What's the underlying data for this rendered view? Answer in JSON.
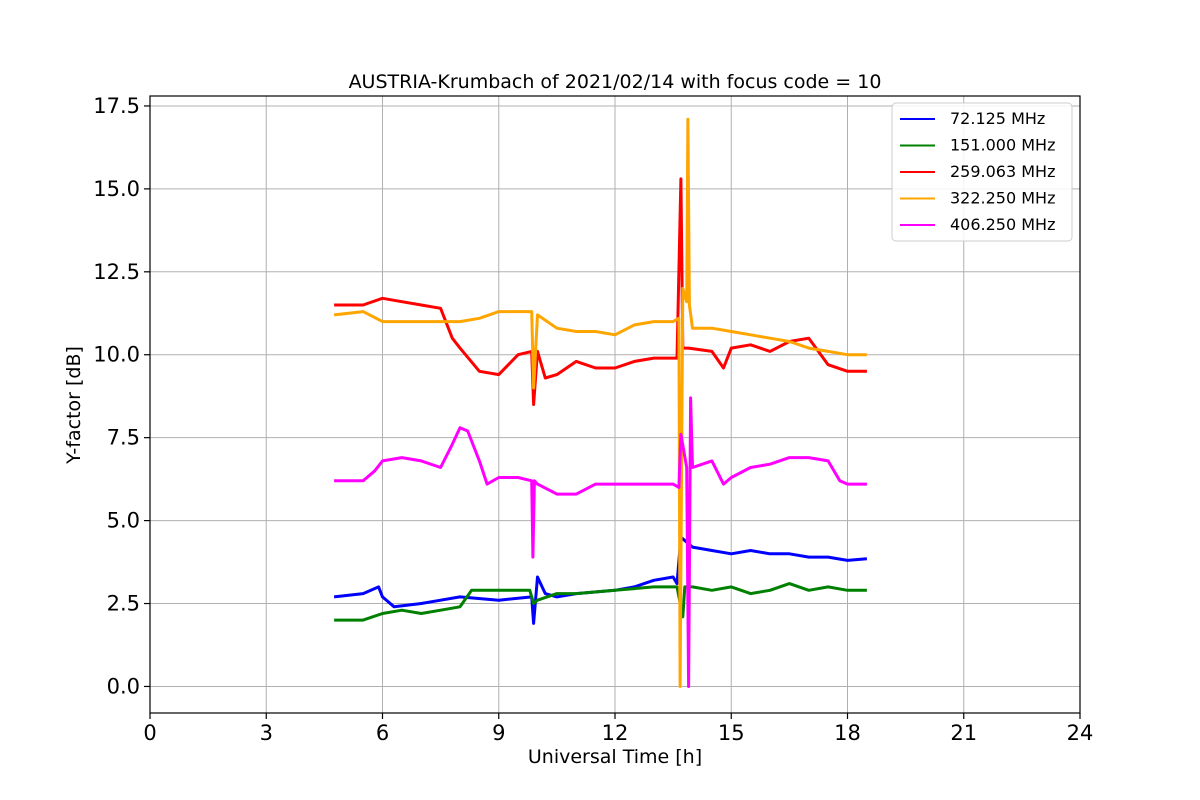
{
  "chart_data": {
    "type": "line",
    "title": "AUSTRIA-Krumbach of 2021/02/14 with focus code = 10",
    "xlabel": "Universal Time [h]",
    "ylabel": "Y-factor [dB]",
    "xlim": [
      0,
      24
    ],
    "ylim": [
      -0.8,
      17.8
    ],
    "xticks": [
      0,
      3,
      6,
      9,
      12,
      15,
      18,
      21,
      24
    ],
    "xtick_labels": [
      "0",
      "3",
      "6",
      "9",
      "12",
      "15",
      "18",
      "21",
      "24"
    ],
    "yticks": [
      0,
      2.5,
      5,
      7.5,
      10,
      12.5,
      15,
      17.5
    ],
    "ytick_labels": [
      "0.0",
      "2.5",
      "5.0",
      "7.5",
      "10.0",
      "12.5",
      "15.0",
      "17.5"
    ],
    "grid": true,
    "legend_position": "top-right",
    "series": [
      {
        "name": " 72.125 MHz",
        "color": "#0000ff",
        "x": [
          4.75,
          5.5,
          5.9,
          6.0,
          6.3,
          7.0,
          7.5,
          8.0,
          9.0,
          9.85,
          9.9,
          10.0,
          10.2,
          10.5,
          11.0,
          12.0,
          12.5,
          13.0,
          13.5,
          13.6,
          13.7,
          14.0,
          14.5,
          15.0,
          15.5,
          16.0,
          16.5,
          17.0,
          17.5,
          18.0,
          18.5
        ],
        "y": [
          2.7,
          2.8,
          3.0,
          2.7,
          2.4,
          2.5,
          2.6,
          2.7,
          2.6,
          2.7,
          1.9,
          3.3,
          2.8,
          2.7,
          2.8,
          2.9,
          3.0,
          3.2,
          3.3,
          3.1,
          4.5,
          4.2,
          4.1,
          4.0,
          4.1,
          4.0,
          4.0,
          3.9,
          3.9,
          3.8,
          3.85
        ]
      },
      {
        "name": "151.000 MHz",
        "color": "#008000",
        "x": [
          4.75,
          5.5,
          6.0,
          6.5,
          7.0,
          7.5,
          8.0,
          8.3,
          9.0,
          9.8,
          9.9,
          10.0,
          10.5,
          11.0,
          12.0,
          13.0,
          13.6,
          13.75,
          13.8,
          14.0,
          14.5,
          15.0,
          15.5,
          16.0,
          16.5,
          17.0,
          17.5,
          18.0,
          18.5
        ],
        "y": [
          2.0,
          2.0,
          2.2,
          2.3,
          2.2,
          2.3,
          2.4,
          2.9,
          2.9,
          2.9,
          2.5,
          2.6,
          2.8,
          2.8,
          2.9,
          3.0,
          3.0,
          2.1,
          3.0,
          3.0,
          2.9,
          3.0,
          2.8,
          2.9,
          3.1,
          2.9,
          3.0,
          2.9,
          2.9
        ]
      },
      {
        "name": "259.063 MHz",
        "color": "#ff0000",
        "x": [
          4.75,
          5.5,
          6.0,
          6.5,
          7.0,
          7.5,
          7.8,
          8.0,
          8.5,
          9.0,
          9.5,
          9.85,
          9.9,
          10.0,
          10.2,
          10.5,
          11.0,
          11.5,
          12.0,
          12.5,
          13.0,
          13.6,
          13.7,
          13.75,
          13.9,
          14.5,
          14.8,
          15.0,
          15.5,
          16.0,
          16.5,
          17.0,
          17.5,
          18.0,
          18.5
        ],
        "y": [
          11.5,
          11.5,
          11.7,
          11.6,
          11.5,
          11.4,
          10.5,
          10.2,
          9.5,
          9.4,
          10.0,
          10.1,
          8.5,
          10.1,
          9.3,
          9.4,
          9.8,
          9.6,
          9.6,
          9.8,
          9.9,
          9.9,
          15.3,
          10.2,
          10.2,
          10.1,
          9.6,
          10.2,
          10.3,
          10.1,
          10.4,
          10.5,
          9.7,
          9.5,
          9.5
        ]
      },
      {
        "name": "322.250 MHz",
        "color": "#ffa500",
        "x": [
          4.75,
          5.5,
          6.0,
          6.5,
          7.0,
          7.5,
          8.0,
          8.5,
          9.0,
          9.5,
          9.85,
          9.9,
          10.0,
          10.5,
          11.0,
          11.5,
          12.0,
          12.5,
          13.0,
          13.5,
          13.65,
          13.68,
          13.75,
          13.85,
          13.88,
          13.92,
          14.0,
          14.5,
          15.0,
          15.5,
          16.0,
          16.5,
          17.0,
          17.5,
          18.0,
          18.5
        ],
        "y": [
          11.2,
          11.3,
          11.0,
          11.0,
          11.0,
          11.0,
          11.0,
          11.1,
          11.3,
          11.3,
          11.3,
          9.0,
          11.2,
          10.8,
          10.7,
          10.7,
          10.6,
          10.9,
          11.0,
          11.0,
          11.1,
          0.0,
          12.0,
          11.6,
          17.1,
          11.5,
          10.8,
          10.8,
          10.7,
          10.6,
          10.5,
          10.4,
          10.2,
          10.1,
          10.0,
          10.0
        ]
      },
      {
        "name": "406.250 MHz",
        "color": "#ff00ff",
        "x": [
          4.75,
          5.5,
          5.8,
          6.0,
          6.5,
          7.0,
          7.5,
          7.8,
          8.0,
          8.2,
          8.5,
          8.7,
          9.0,
          9.5,
          9.85,
          9.88,
          9.92,
          10.0,
          10.5,
          11.0,
          11.5,
          12.0,
          12.5,
          13.0,
          13.5,
          13.65,
          13.7,
          13.85,
          13.9,
          13.95,
          14.0,
          14.5,
          14.8,
          15.0,
          15.5,
          16.0,
          16.5,
          17.0,
          17.5,
          17.8,
          18.0,
          18.5
        ],
        "y": [
          6.2,
          6.2,
          6.5,
          6.8,
          6.9,
          6.8,
          6.6,
          7.3,
          7.8,
          7.7,
          6.8,
          6.1,
          6.3,
          6.3,
          6.2,
          3.9,
          6.2,
          6.1,
          5.8,
          5.8,
          6.1,
          6.1,
          6.1,
          6.1,
          6.1,
          6.0,
          7.6,
          6.6,
          0.0,
          8.7,
          6.6,
          6.8,
          6.1,
          6.3,
          6.6,
          6.7,
          6.9,
          6.9,
          6.8,
          6.2,
          6.1,
          6.1
        ]
      }
    ]
  }
}
